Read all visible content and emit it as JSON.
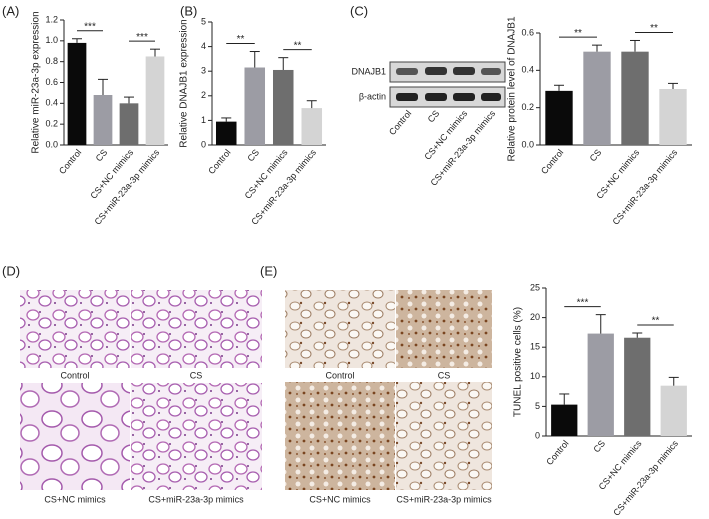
{
  "chart_data": [
    {
      "type": "bar",
      "panel": "(A)",
      "y_label": "Relative miR-23a-3p expression",
      "categories": [
        "Control",
        "CS",
        "CS+NC mimics",
        "CS+miR-23a-3p mimics"
      ],
      "values": [
        0.98,
        0.48,
        0.4,
        0.85
      ],
      "errors": [
        0.04,
        0.15,
        0.06,
        0.07
      ],
      "colors": [
        "#0a0a0a",
        "#9c9ca4",
        "#6e6e6e",
        "#d4d4d4"
      ],
      "ylim": [
        0,
        1.2
      ],
      "yticks": [
        {
          "value": 0,
          "label": "0.0"
        },
        {
          "value": 0.2,
          "label": "0.2"
        },
        {
          "value": 0.4,
          "label": "0.4"
        },
        {
          "value": 0.6,
          "label": "0.6"
        },
        {
          "value": 0.8,
          "label": "0.8"
        },
        {
          "value": 1,
          "label": "1.0"
        },
        {
          "value": 1.2,
          "label": "1.2"
        }
      ],
      "significance": [
        {
          "from": 0,
          "to": 1,
          "label": "***"
        },
        {
          "from": 2,
          "to": 3,
          "label": "***"
        }
      ]
    },
    {
      "type": "bar",
      "panel": "(B)",
      "y_label": "Relative DNAJB1 expression",
      "categories": [
        "Control",
        "CS",
        "CS+NC mimics",
        "CS+miR-23a-3p mimics"
      ],
      "values": [
        0.95,
        3.15,
        3.05,
        1.5
      ],
      "errors": [
        0.15,
        0.65,
        0.5,
        0.3
      ],
      "colors": [
        "#0a0a0a",
        "#9c9ca4",
        "#6e6e6e",
        "#d4d4d4"
      ],
      "ylim": [
        0,
        5
      ],
      "yticks": [
        0,
        1,
        2,
        3,
        4,
        5
      ],
      "significance": [
        {
          "from": 0,
          "to": 1,
          "label": "**"
        },
        {
          "from": 2,
          "to": 3,
          "label": "**"
        }
      ]
    },
    {
      "type": "bar",
      "panel": "(C)",
      "y_label": "Relative protein level of DNAJB1",
      "categories": [
        "Control",
        "CS",
        "CS+NC mimics",
        "CS+miR-23a-3p mimics"
      ],
      "values": [
        0.29,
        0.5,
        0.5,
        0.3
      ],
      "errors": [
        0.03,
        0.035,
        0.06,
        0.03
      ],
      "colors": [
        "#0a0a0a",
        "#9c9ca4",
        "#6e6e6e",
        "#d4d4d4"
      ],
      "ylim": [
        0,
        0.6
      ],
      "yticks": [
        {
          "value": 0,
          "label": "0.0"
        },
        {
          "value": 0.2,
          "label": "0.2"
        },
        {
          "value": 0.4,
          "label": "0.4"
        },
        {
          "value": 0.6,
          "label": "0.6"
        }
      ],
      "significance": [
        {
          "from": 0,
          "to": 1,
          "label": "**"
        },
        {
          "from": 2,
          "to": 3,
          "label": "**"
        }
      ]
    },
    {
      "type": "bar",
      "panel": "(E)",
      "y_label": "TUNEL positive cells (%)",
      "categories": [
        "Control",
        "CS",
        "CS+NC mimics",
        "CS+miR-23a-3p mimics"
      ],
      "values": [
        5.3,
        17.3,
        16.6,
        8.5
      ],
      "errors": [
        1.8,
        3.2,
        0.8,
        1.4
      ],
      "colors": [
        "#0a0a0a",
        "#9c9ca4",
        "#6e6e6e",
        "#d4d4d4"
      ],
      "ylim": [
        0,
        25
      ],
      "yticks": [
        0,
        5,
        10,
        15,
        20,
        25
      ],
      "significance": [
        {
          "from": 0,
          "to": 1,
          "label": "***"
        },
        {
          "from": 2,
          "to": 3,
          "label": "**"
        }
      ]
    }
  ],
  "blot": {
    "bands": [
      "DNAJB1",
      "β-actin"
    ],
    "lanes": [
      "Control",
      "CS",
      "CS+NC mimics",
      "CS+miR-23a-3p mimics"
    ]
  },
  "histology": [
    {
      "panel": "(D)",
      "captions": [
        "Control",
        "CS",
        "CS+NC mimics",
        "CS+miR-23a-3p mimics"
      ]
    },
    {
      "panel": "(E)",
      "captions": [
        "Control",
        "CS",
        "CS+NC mimics",
        "CS+miR-23a-3p mimics"
      ]
    }
  ]
}
